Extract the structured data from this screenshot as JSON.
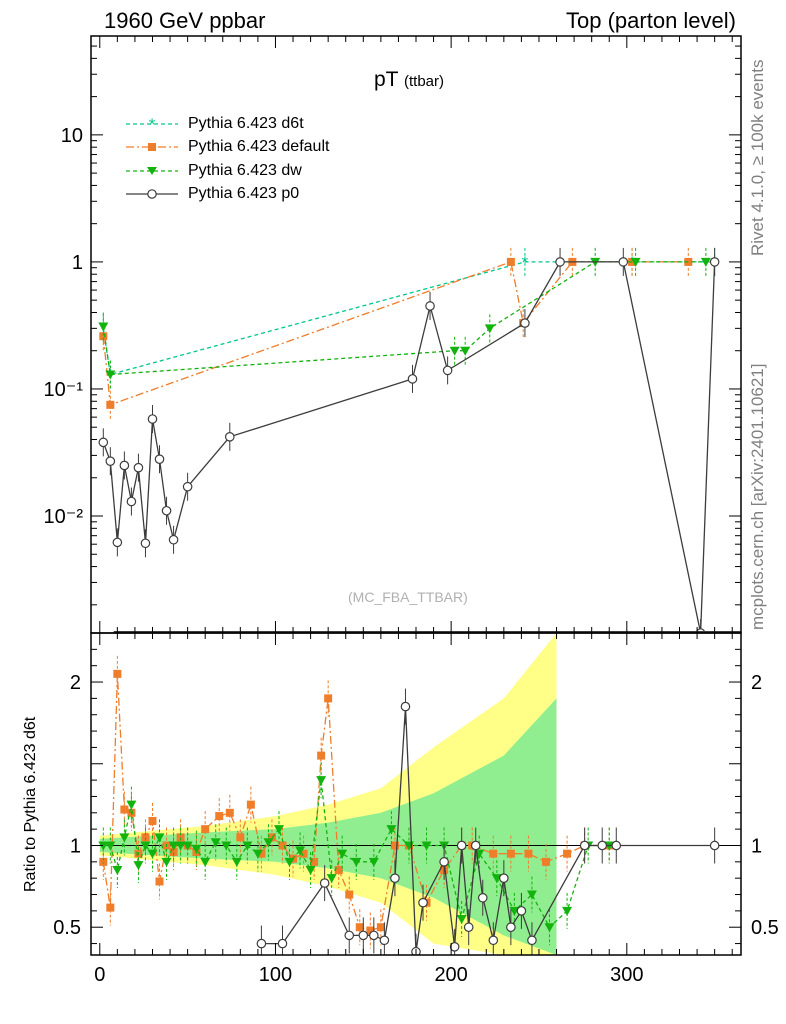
{
  "header": {
    "left": "1960 GeV ppbar",
    "right": "Top (parton level)"
  },
  "side_text": {
    "rivet": "Rivet 4.1.0, ≥ 100k events",
    "mcplots": "mcplots.cern.ch [arXiv:2401.10621]"
  },
  "colors": {
    "d6t": "#00c78c",
    "default": "#f07d2a",
    "dw": "#12b30e",
    "p0": "#3c3c3c",
    "band_yellow": "#ffff88",
    "band_green": "#90ee90"
  },
  "chart_data": [
    {
      "type": "line",
      "title": "pT",
      "title_sub": "(ttbar)",
      "annotation": "(MC_FBA_TTBAR)",
      "yscale": "log",
      "xlim": [
        -5,
        365
      ],
      "ylim": [
        0.0012,
        60
      ],
      "yticks": [
        {
          "v": 10,
          "label": "10"
        },
        {
          "v": 1,
          "label": "1"
        },
        {
          "v": 0.1,
          "label": "10⁻¹"
        },
        {
          "v": 0.01,
          "label": "10⁻²"
        }
      ],
      "legend": {
        "placement": "top-left",
        "entries": [
          "Pythia 6.423 d6t",
          "Pythia 6.423 default",
          "Pythia 6.423 dw",
          "Pythia 6.423 p0"
        ]
      },
      "series": [
        {
          "name": "Pythia 6.423 d6t",
          "key": "d6t",
          "marker": "star",
          "dash": "4,3",
          "points": [
            [
              2,
              0.3
            ],
            [
              6,
              0.13
            ],
            [
              242,
              1.0
            ],
            [
              303,
              1.0
            ],
            [
              350,
              1.0
            ]
          ]
        },
        {
          "name": "Pythia 6.423 default",
          "key": "default",
          "marker": "square",
          "dash": "8,3,2,3",
          "points": [
            [
              2,
              0.26
            ],
            [
              6,
              0.075
            ],
            [
              234,
              1.0
            ],
            [
              241,
              0.33
            ],
            [
              269,
              1.0
            ],
            [
              303,
              1.0
            ],
            [
              335,
              1.0
            ]
          ]
        },
        {
          "name": "Pythia 6.423 dw",
          "key": "dw",
          "marker": "triangle",
          "dash": "4,3",
          "points": [
            [
              2,
              0.31
            ],
            [
              6,
              0.13
            ],
            [
              202,
              0.2
            ],
            [
              208,
              0.2
            ],
            [
              222,
              0.3
            ],
            [
              282,
              1.0
            ],
            [
              305,
              1.0
            ],
            [
              345,
              1.0
            ]
          ]
        },
        {
          "name": "Pythia 6.423 p0",
          "key": "p0",
          "marker": "circle",
          "dash": "",
          "points": [
            [
              2,
              0.038
            ],
            [
              6,
              0.027
            ],
            [
              10,
              0.0062
            ],
            [
              14,
              0.025
            ],
            [
              18,
              0.013
            ],
            [
              22,
              0.024
            ],
            [
              26,
              0.0061
            ],
            [
              30,
              0.058
            ],
            [
              34,
              0.028
            ],
            [
              38,
              0.011
            ],
            [
              42,
              0.0065
            ],
            [
              50,
              0.017
            ],
            [
              74,
              0.042
            ],
            [
              178,
              0.12
            ],
            [
              188,
              0.45
            ],
            [
              198,
              0.14
            ],
            [
              242,
              0.33
            ],
            [
              262,
              1.0
            ],
            [
              298,
              1.0
            ],
            [
              342,
              0.0012
            ],
            [
              350,
              1.0
            ]
          ]
        }
      ]
    },
    {
      "type": "line",
      "ylabel": "Ratio to Pythia 6.423 d6t",
      "xlabel": "",
      "xlim": [
        -5,
        365
      ],
      "ylim": [
        0.33,
        2.3
      ],
      "xticks": [
        0,
        100,
        200,
        300
      ],
      "yticks": [
        0.5,
        1,
        2
      ],
      "band": {
        "yellow_halfwidth": [
          [
            0,
            0.06
          ],
          [
            60,
            0.12
          ],
          [
            100,
            0.18
          ],
          [
            130,
            0.25
          ],
          [
            160,
            0.35
          ],
          [
            190,
            0.6
          ],
          [
            230,
            0.9
          ],
          [
            260,
            1.3
          ]
        ],
        "green_halfwidth": [
          [
            0,
            0.04
          ],
          [
            60,
            0.08
          ],
          [
            100,
            0.1
          ],
          [
            130,
            0.14
          ],
          [
            160,
            0.2
          ],
          [
            190,
            0.32
          ],
          [
            230,
            0.55
          ],
          [
            260,
            0.9
          ]
        ]
      },
      "series": [
        {
          "name": "Pythia 6.423 default",
          "key": "default",
          "marker": "square",
          "dash": "8,3,2,3",
          "points": [
            [
              2,
              0.9
            ],
            [
              6,
              0.62
            ],
            [
              10,
              2.05
            ],
            [
              14,
              1.22
            ],
            [
              18,
              1.2
            ],
            [
              22,
              0.95
            ],
            [
              26,
              1.05
            ],
            [
              30,
              1.15
            ],
            [
              34,
              0.78
            ],
            [
              38,
              1.0
            ],
            [
              42,
              0.96
            ],
            [
              46,
              1.05
            ],
            [
              50,
              1.0
            ],
            [
              55,
              0.96
            ],
            [
              60,
              1.1
            ],
            [
              68,
              1.18
            ],
            [
              74,
              1.2
            ],
            [
              80,
              1.05
            ],
            [
              86,
              1.25
            ],
            [
              92,
              0.95
            ],
            [
              98,
              1.05
            ],
            [
              104,
              1.0
            ],
            [
              110,
              0.92
            ],
            [
              116,
              0.95
            ],
            [
              122,
              0.9
            ],
            [
              126,
              1.55
            ],
            [
              130,
              1.9
            ],
            [
              136,
              0.85
            ],
            [
              142,
              0.7
            ],
            [
              148,
              0.5
            ],
            [
              154,
              0.48
            ],
            [
              160,
              0.5
            ],
            [
              168,
              1.0
            ],
            [
              176,
              1.0
            ],
            [
              186,
              0.65
            ],
            [
              196,
              0.85
            ],
            [
              206,
              1.0
            ],
            [
              212,
              1.0
            ],
            [
              224,
              0.95
            ],
            [
              234,
              0.95
            ],
            [
              244,
              0.95
            ],
            [
              254,
              0.9
            ],
            [
              266,
              0.95
            ],
            [
              276,
              1.0
            ],
            [
              290,
              1.0
            ]
          ]
        },
        {
          "name": "Pythia 6.423 dw",
          "key": "dw",
          "marker": "triangle",
          "dash": "4,3",
          "points": [
            [
              2,
              1.0
            ],
            [
              6,
              1.0
            ],
            [
              10,
              0.85
            ],
            [
              14,
              1.05
            ],
            [
              18,
              1.25
            ],
            [
              22,
              0.88
            ],
            [
              26,
              1.0
            ],
            [
              30,
              0.95
            ],
            [
              34,
              1.05
            ],
            [
              38,
              0.9
            ],
            [
              42,
              1.0
            ],
            [
              46,
              1.0
            ],
            [
              50,
              1.0
            ],
            [
              55,
              0.98
            ],
            [
              60,
              0.9
            ],
            [
              66,
              1.02
            ],
            [
              72,
              1.0
            ],
            [
              78,
              0.9
            ],
            [
              84,
              1.0
            ],
            [
              90,
              0.95
            ],
            [
              96,
              1.02
            ],
            [
              102,
              1.1
            ],
            [
              108,
              0.9
            ],
            [
              114,
              0.97
            ],
            [
              120,
              0.85
            ],
            [
              126,
              1.4
            ],
            [
              132,
              0.8
            ],
            [
              138,
              0.95
            ],
            [
              146,
              0.9
            ],
            [
              156,
              0.9
            ],
            [
              166,
              1.1
            ],
            [
              176,
              1.0
            ],
            [
              186,
              1.0
            ],
            [
              196,
              1.0
            ],
            [
              206,
              0.55
            ],
            [
              216,
              0.95
            ],
            [
              226,
              0.8
            ],
            [
              236,
              0.6
            ],
            [
              246,
              0.7
            ],
            [
              256,
              0.5
            ],
            [
              266,
              0.6
            ],
            [
              278,
              1.0
            ],
            [
              290,
              1.0
            ]
          ]
        },
        {
          "name": "Pythia 6.423 p0",
          "key": "p0",
          "marker": "circle",
          "dash": "",
          "points": [
            [
              92,
              0.4
            ],
            [
              104,
              0.4
            ],
            [
              128,
              0.77
            ],
            [
              142,
              0.45
            ],
            [
              150,
              0.45
            ],
            [
              156,
              0.45
            ],
            [
              162,
              0.42
            ],
            [
              168,
              0.8
            ],
            [
              174,
              1.85
            ],
            [
              180,
              0.35
            ],
            [
              184,
              0.65
            ],
            [
              196,
              0.9
            ],
            [
              202,
              0.38
            ],
            [
              206,
              1.0
            ],
            [
              210,
              0.5
            ],
            [
              214,
              1.0
            ],
            [
              218,
              0.68
            ],
            [
              224,
              0.42
            ],
            [
              230,
              0.8
            ],
            [
              234,
              0.5
            ],
            [
              240,
              0.6
            ],
            [
              246,
              0.42
            ],
            [
              276,
              1.0
            ],
            [
              286,
              1.0
            ],
            [
              294,
              1.0
            ],
            [
              350,
              1.0
            ]
          ]
        }
      ]
    }
  ]
}
